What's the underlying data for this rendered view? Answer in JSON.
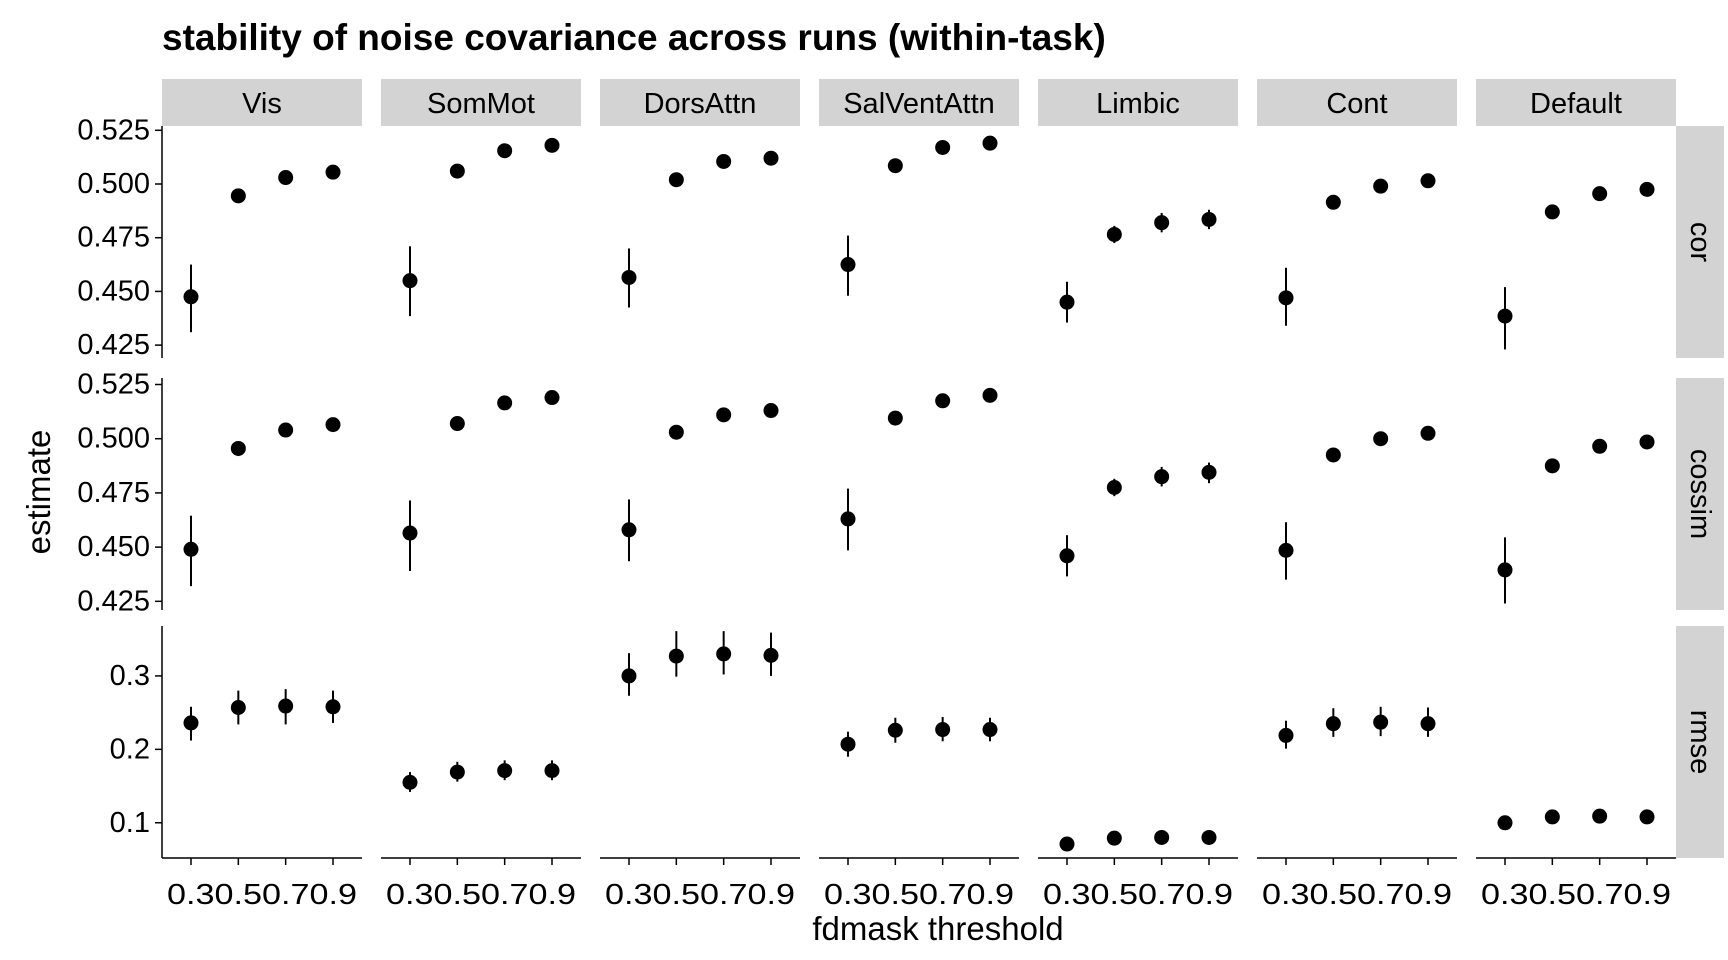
{
  "chart_data": {
    "type": "scatter",
    "title": "stability of noise covariance across runs (within-task)",
    "xlabel": "fdmask threshold",
    "ylabel": "estimate",
    "x_ticks": [
      "0.3",
      "0.5",
      "0.7",
      "0.9"
    ],
    "x_tick_text": "0.30.50.70.9",
    "x": [
      0.3,
      0.5,
      0.7,
      0.9
    ],
    "columns": [
      "Vis",
      "SomMot",
      "DorsAttn",
      "SalVentAttn",
      "Limbic",
      "Cont",
      "Default"
    ],
    "rows": [
      {
        "name": "cor",
        "ylim": [
          0.419,
          0.527
        ],
        "y_ticks": [
          "0.425",
          "0.450",
          "0.475",
          "0.500",
          "0.525"
        ],
        "panels": [
          {
            "column": "Vis",
            "y": [
              0.4475,
              0.4945,
              0.503,
              0.5055
            ],
            "lower": [
              0.431,
              0.4915,
              0.5005,
              0.503
            ],
            "upper": [
              0.4625,
              0.4975,
              0.506,
              0.508
            ]
          },
          {
            "column": "SomMot",
            "y": [
              0.455,
              0.506,
              0.5155,
              0.518
            ],
            "lower": [
              0.4385,
              0.503,
              0.513,
              0.5155
            ],
            "upper": [
              0.471,
              0.509,
              0.518,
              0.5205
            ]
          },
          {
            "column": "DorsAttn",
            "y": [
              0.4565,
              0.502,
              0.5105,
              0.512
            ],
            "lower": [
              0.4425,
              0.499,
              0.508,
              0.5095
            ],
            "upper": [
              0.47,
              0.505,
              0.513,
              0.5145
            ]
          },
          {
            "column": "SalVentAttn",
            "y": [
              0.4625,
              0.5085,
              0.517,
              0.519
            ],
            "lower": [
              0.448,
              0.5055,
              0.5145,
              0.5165
            ],
            "upper": [
              0.476,
              0.5115,
              0.5195,
              0.5215
            ]
          },
          {
            "column": "Limbic",
            "y": [
              0.445,
              0.4765,
              0.482,
              0.4835
            ],
            "lower": [
              0.4355,
              0.4725,
              0.4775,
              0.479
            ],
            "upper": [
              0.4545,
              0.4805,
              0.4865,
              0.488
            ]
          },
          {
            "column": "Cont",
            "y": [
              0.447,
              0.4915,
              0.499,
              0.5015
            ],
            "lower": [
              0.434,
              0.489,
              0.4965,
              0.499
            ],
            "upper": [
              0.461,
              0.494,
              0.5015,
              0.504
            ]
          },
          {
            "column": "Default",
            "y": [
              0.4385,
              0.487,
              0.4955,
              0.4975
            ],
            "lower": [
              0.423,
              0.4845,
              0.493,
              0.495
            ],
            "upper": [
              0.452,
              0.4895,
              0.498,
              0.5
            ]
          }
        ]
      },
      {
        "name": "cossim",
        "ylim": [
          0.421,
          0.528
        ],
        "y_ticks": [
          "0.425",
          "0.450",
          "0.475",
          "0.500",
          "0.525"
        ],
        "panels": [
          {
            "column": "Vis",
            "y": [
              0.449,
              0.4955,
              0.504,
              0.5065
            ],
            "lower": [
              0.432,
              0.492,
              0.501,
              0.504
            ],
            "upper": [
              0.4645,
              0.4985,
              0.507,
              0.509
            ]
          },
          {
            "column": "SomMot",
            "y": [
              0.4565,
              0.507,
              0.5165,
              0.519
            ],
            "lower": [
              0.439,
              0.504,
              0.514,
              0.5165
            ],
            "upper": [
              0.4715,
              0.51,
              0.519,
              0.5215
            ]
          },
          {
            "column": "DorsAttn",
            "y": [
              0.458,
              0.503,
              0.511,
              0.513
            ],
            "lower": [
              0.4435,
              0.5,
              0.508,
              0.5105
            ],
            "upper": [
              0.472,
              0.506,
              0.514,
              0.5155
            ]
          },
          {
            "column": "SalVentAttn",
            "y": [
              0.463,
              0.5095,
              0.5175,
              0.52
            ],
            "lower": [
              0.4485,
              0.5065,
              0.515,
              0.5175
            ],
            "upper": [
              0.477,
              0.5125,
              0.52,
              0.5225
            ]
          },
          {
            "column": "Limbic",
            "y": [
              0.446,
              0.4775,
              0.4825,
              0.4845
            ],
            "lower": [
              0.4365,
              0.4735,
              0.478,
              0.4795
            ],
            "upper": [
              0.4555,
              0.4815,
              0.487,
              0.489
            ]
          },
          {
            "column": "Cont",
            "y": [
              0.4485,
              0.4925,
              0.5,
              0.5025
            ],
            "lower": [
              0.435,
              0.49,
              0.4975,
              0.5
            ],
            "upper": [
              0.4615,
              0.495,
              0.5025,
              0.505
            ]
          },
          {
            "column": "Default",
            "y": [
              0.4395,
              0.4875,
              0.4965,
              0.4985
            ],
            "lower": [
              0.424,
              0.485,
              0.494,
              0.496
            ],
            "upper": [
              0.4545,
              0.49,
              0.499,
              0.501
            ]
          }
        ]
      },
      {
        "name": "rmse",
        "ylim": [
          0.052,
          0.368
        ],
        "y_ticks": [
          "0.1",
          "0.2",
          "0.3"
        ],
        "panels": [
          {
            "column": "Vis",
            "y": [
              0.236,
              0.257,
              0.259,
              0.258
            ],
            "lower": [
              0.212,
              0.234,
              0.234,
              0.236
            ],
            "upper": [
              0.258,
              0.28,
              0.282,
              0.28
            ]
          },
          {
            "column": "SomMot",
            "y": [
              0.155,
              0.169,
              0.171,
              0.171
            ],
            "lower": [
              0.142,
              0.156,
              0.158,
              0.158
            ],
            "upper": [
              0.169,
              0.183,
              0.185,
              0.185
            ]
          },
          {
            "column": "DorsAttn",
            "y": [
              0.3,
              0.327,
              0.33,
              0.328
            ],
            "lower": [
              0.273,
              0.299,
              0.302,
              0.3
            ],
            "upper": [
              0.331,
              0.361,
              0.361,
              0.359
            ]
          },
          {
            "column": "SalVentAttn",
            "y": [
              0.207,
              0.226,
              0.227,
              0.227
            ],
            "lower": [
              0.19,
              0.209,
              0.211,
              0.211
            ],
            "upper": [
              0.224,
              0.243,
              0.244,
              0.243
            ]
          },
          {
            "column": "Limbic",
            "y": [
              0.071,
              0.079,
              0.08,
              0.08
            ],
            "lower": [
              0.064,
              0.071,
              0.072,
              0.073
            ],
            "upper": [
              0.079,
              0.087,
              0.088,
              0.088
            ]
          },
          {
            "column": "Cont",
            "y": [
              0.219,
              0.235,
              0.237,
              0.235
            ],
            "lower": [
              0.201,
              0.217,
              0.218,
              0.217
            ],
            "upper": [
              0.239,
              0.256,
              0.258,
              0.257
            ]
          },
          {
            "column": "Default",
            "y": [
              0.1,
              0.108,
              0.109,
              0.108
            ],
            "lower": [
              0.093,
              0.101,
              0.102,
              0.102
            ],
            "upper": [
              0.107,
              0.116,
              0.117,
              0.117
            ]
          }
        ]
      }
    ]
  }
}
